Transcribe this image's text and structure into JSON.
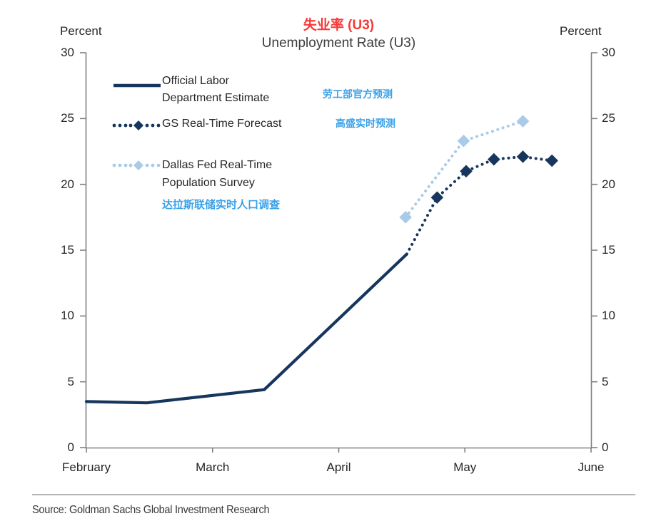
{
  "header": {
    "title_cn": "失业率 (U3)",
    "title_en": "Unemployment Rate (U3)"
  },
  "axis_units": {
    "left": "Percent",
    "right": "Percent"
  },
  "legend": {
    "official": {
      "label_line1": "Official Labor",
      "label_line2": "Department Estimate",
      "annotation_cn": "劳工部官方预测"
    },
    "gs": {
      "label": "GS Real-Time Forecast",
      "annotation_cn": "高盛实时预测"
    },
    "dallas": {
      "label_line1": "Dallas Fed Real-Time",
      "label_line2": "Population Survey",
      "annotation_cn": "达拉斯联储实时人口调查"
    }
  },
  "source": "Source: Goldman Sachs Global Investment Research",
  "colors": {
    "navy": "#17365d",
    "light_blue": "#a9cbe8",
    "title_red": "#f93636",
    "annotation_blue": "#3ba1e8",
    "axis_gray": "#808080",
    "text_dark": "#262626"
  },
  "chart_data": {
    "type": "line",
    "title": "Unemployment Rate (U3)",
    "title_cn": "失业率 (U3)",
    "ylabel": "Percent",
    "ylim": [
      0,
      30
    ],
    "y_ticks": [
      30,
      25,
      20,
      15,
      10,
      5,
      0
    ],
    "x_ticks": [
      "February",
      "March",
      "April",
      "May",
      "June"
    ],
    "grid": false,
    "legend_position": "upper-left-inside",
    "series": [
      {
        "name": "Official Labor Department Estimate",
        "style": "solid",
        "marker": "none",
        "color": "#17365d",
        "x_months_from_feb": [
          0,
          0.48,
          1.41,
          2.54
        ],
        "x_dates_approx": [
          "Feb 1",
          "mid-Feb",
          "mid-Mar",
          "mid-Apr"
        ],
        "values": [
          3.5,
          3.4,
          4.4,
          14.7
        ]
      },
      {
        "name": "GS Real-Time Forecast",
        "style": "dotted",
        "marker": "diamond",
        "marker_start_index": 1,
        "color": "#17365d",
        "x_months_from_feb": [
          2.54,
          2.78,
          3.01,
          3.23,
          3.46,
          3.69
        ],
        "x_dates_approx": [
          "mid-Apr",
          "late Apr",
          "May 1",
          "May 8",
          "May 15",
          "May 22"
        ],
        "values": [
          14.7,
          19.0,
          21.0,
          21.9,
          22.1,
          21.8
        ]
      },
      {
        "name": "Dallas Fed Real-Time Population Survey",
        "style": "dotted",
        "marker": "diamond",
        "marker_start_index": 0,
        "color": "#a9cbe8",
        "x_months_from_feb": [
          2.53,
          2.99,
          3.46
        ],
        "x_dates_approx": [
          "mid-Apr",
          "May 1",
          "May 15"
        ],
        "values": [
          17.5,
          23.3,
          24.8
        ]
      }
    ]
  }
}
